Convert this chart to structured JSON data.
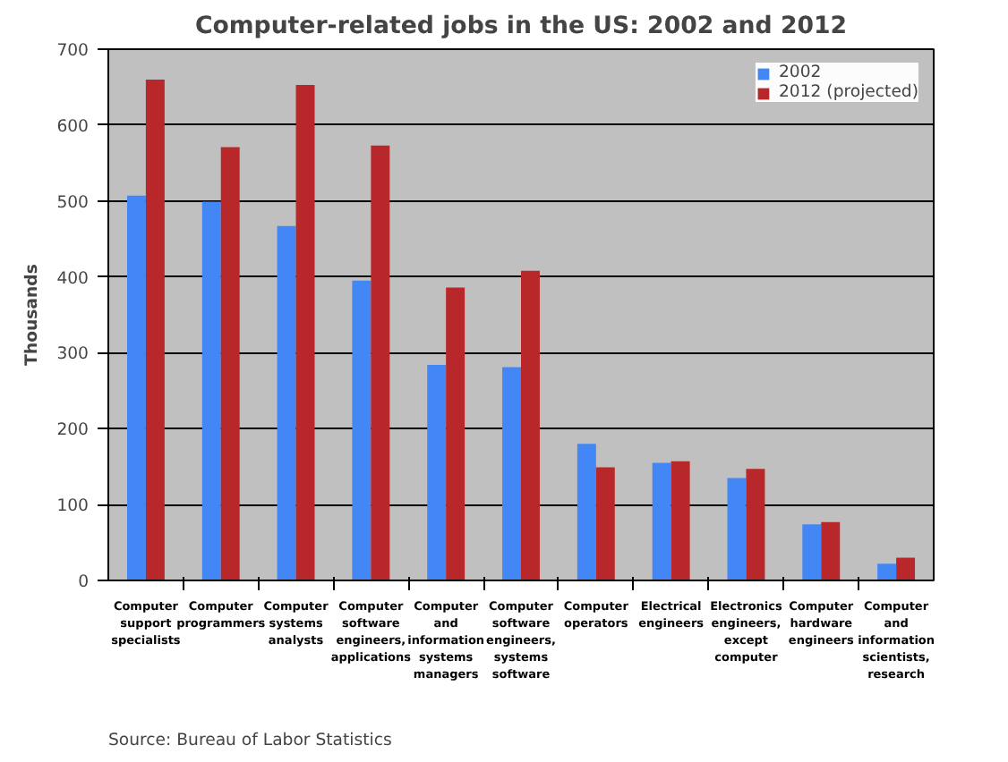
{
  "chart_data": {
    "type": "bar",
    "title": "Computer-related jobs in the US: 2002 and 2012",
    "ylabel": "Thousands",
    "categories": [
      "Computer support specialists",
      "Computer programmers",
      "Computer systems analysts",
      "Computer software engineers, applications",
      "Computer and information systems managers",
      "Computer software engineers, systems software",
      "Computer operators",
      "Electrical engineers",
      "Electronics engineers, except computer",
      "Computer hardware engineers",
      "Computer and information scientists, research"
    ],
    "series": [
      {
        "name": "2002",
        "color": "#4287f5",
        "values": [
          507,
          499,
          467,
          395,
          284,
          281,
          180,
          155,
          135,
          74,
          22
        ]
      },
      {
        "name": "2012 (projected)",
        "color": "#b8282a",
        "values": [
          660,
          571,
          653,
          573,
          386,
          408,
          149,
          157,
          147,
          77,
          30
        ]
      }
    ],
    "ylim": [
      0,
      700
    ],
    "yticks": [
      0,
      100,
      200,
      300,
      400,
      500,
      600,
      700
    ],
    "grid": "y",
    "legend": "top right",
    "annotations": [
      "Source: Bureau of Labor Statistics"
    ]
  }
}
